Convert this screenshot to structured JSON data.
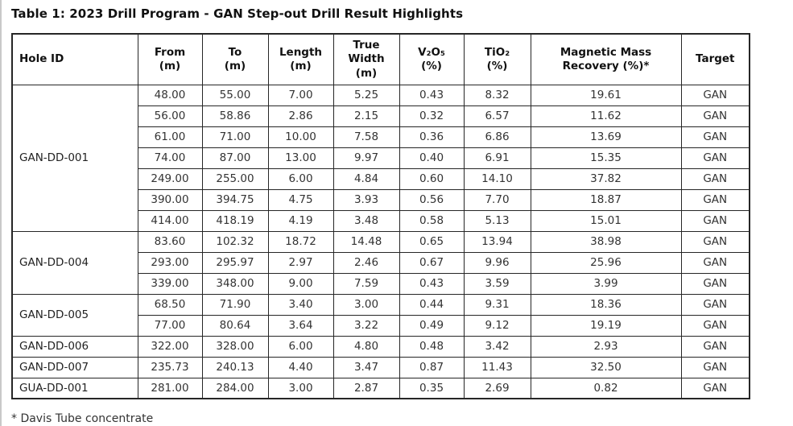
{
  "page": {
    "title": "Table 1: 2023 Drill Program - GAN Step-out Drill Result Highlights",
    "footnote": "* Davis Tube concentrate"
  },
  "table": {
    "columns": [
      "Hole ID",
      "From\n(m)",
      "To\n(m)",
      "Length\n(m)",
      "True\nWidth\n(m)",
      "V₂O₅\n(%)",
      "TiO₂\n(%)",
      "Magnetic Mass\nRecovery (%)*",
      "Target"
    ],
    "groups": [
      {
        "hole_id": "GAN-DD-001",
        "rows": [
          [
            "48.00",
            "55.00",
            "7.00",
            "5.25",
            "0.43",
            "8.32",
            "19.61",
            "GAN"
          ],
          [
            "56.00",
            "58.86",
            "2.86",
            "2.15",
            "0.32",
            "6.57",
            "11.62",
            "GAN"
          ],
          [
            "61.00",
            "71.00",
            "10.00",
            "7.58",
            "0.36",
            "6.86",
            "13.69",
            "GAN"
          ],
          [
            "74.00",
            "87.00",
            "13.00",
            "9.97",
            "0.40",
            "6.91",
            "15.35",
            "GAN"
          ],
          [
            "249.00",
            "255.00",
            "6.00",
            "4.84",
            "0.60",
            "14.10",
            "37.82",
            "GAN"
          ],
          [
            "390.00",
            "394.75",
            "4.75",
            "3.93",
            "0.56",
            "7.70",
            "18.87",
            "GAN"
          ],
          [
            "414.00",
            "418.19",
            "4.19",
            "3.48",
            "0.58",
            "5.13",
            "15.01",
            "GAN"
          ]
        ]
      },
      {
        "hole_id": "GAN-DD-004",
        "rows": [
          [
            "83.60",
            "102.32",
            "18.72",
            "14.48",
            "0.65",
            "13.94",
            "38.98",
            "GAN"
          ],
          [
            "293.00",
            "295.97",
            "2.97",
            "2.46",
            "0.67",
            "9.96",
            "25.96",
            "GAN"
          ],
          [
            "339.00",
            "348.00",
            "9.00",
            "7.59",
            "0.43",
            "3.59",
            "3.99",
            "GAN"
          ]
        ]
      },
      {
        "hole_id": "GAN-DD-005",
        "rows": [
          [
            "68.50",
            "71.90",
            "3.40",
            "3.00",
            "0.44",
            "9.31",
            "18.36",
            "GAN"
          ],
          [
            "77.00",
            "80.64",
            "3.64",
            "3.22",
            "0.49",
            "9.12",
            "19.19",
            "GAN"
          ]
        ]
      },
      {
        "hole_id": "GAN-DD-006",
        "rows": [
          [
            "322.00",
            "328.00",
            "6.00",
            "4.80",
            "0.48",
            "3.42",
            "2.93",
            "GAN"
          ]
        ]
      },
      {
        "hole_id": "GAN-DD-007",
        "rows": [
          [
            "235.73",
            "240.13",
            "4.40",
            "3.47",
            "0.87",
            "11.43",
            "32.50",
            "GAN"
          ]
        ]
      },
      {
        "hole_id": "GUA-DD-001",
        "rows": [
          [
            "281.00",
            "284.00",
            "3.00",
            "2.87",
            "0.35",
            "2.69",
            "0.82",
            "GAN"
          ]
        ]
      }
    ]
  }
}
